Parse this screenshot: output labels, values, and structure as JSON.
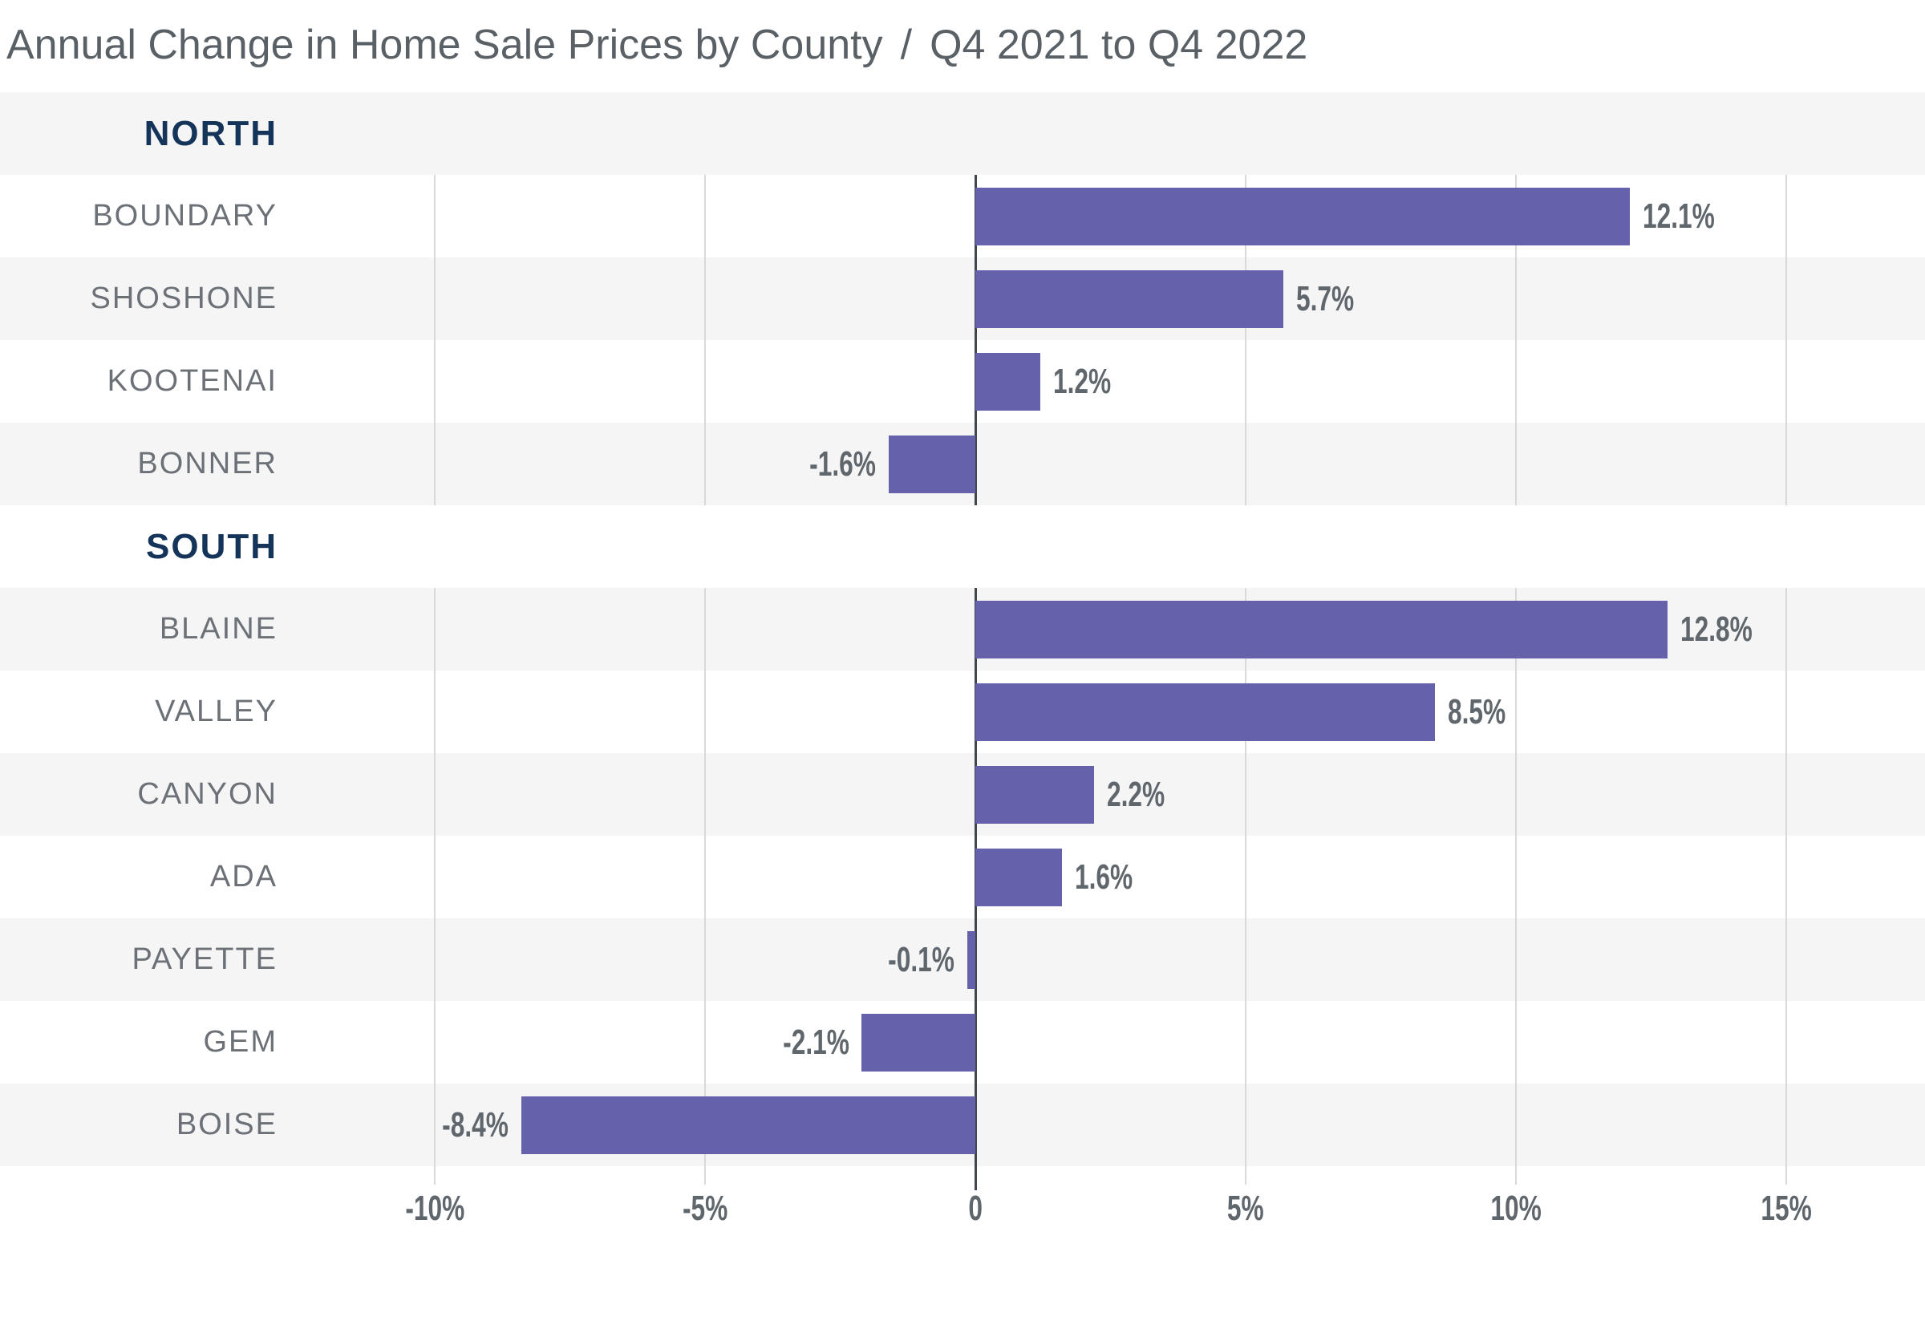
{
  "title": {
    "main": "Annual Change in Home Sale Prices by County",
    "separator": "/",
    "range": "Q4 2021 to Q4 2022"
  },
  "chart_data": {
    "type": "bar",
    "orientation": "horizontal",
    "value_unit": "percent",
    "title": "Annual Change in Home Sale Prices by County / Q4 2021 to Q4 2022",
    "x_axis": {
      "min": -13,
      "max": 17.5,
      "gridlines": true,
      "ticks": [
        {
          "value": -10,
          "label": "-10%"
        },
        {
          "value": -5,
          "label": "-5%"
        },
        {
          "value": 0,
          "label": "0"
        },
        {
          "value": 5,
          "label": "5%"
        },
        {
          "value": 10,
          "label": "10%"
        },
        {
          "value": 15,
          "label": "15%"
        }
      ]
    },
    "groups": [
      {
        "section": "NORTH",
        "rows": [
          {
            "county": "BOUNDARY",
            "value": 12.1,
            "label": "12.1%"
          },
          {
            "county": "SHOSHONE",
            "value": 5.7,
            "label": "5.7%"
          },
          {
            "county": "KOOTENAI",
            "value": 1.2,
            "label": "1.2%"
          },
          {
            "county": "BONNER",
            "value": -1.6,
            "label": "-1.6%"
          }
        ]
      },
      {
        "section": "SOUTH",
        "rows": [
          {
            "county": "BLAINE",
            "value": 12.8,
            "label": "12.8%"
          },
          {
            "county": "VALLEY",
            "value": 8.5,
            "label": "8.5%"
          },
          {
            "county": "CANYON",
            "value": 2.2,
            "label": "2.2%"
          },
          {
            "county": "ADA",
            "value": 1.6,
            "label": "1.6%"
          },
          {
            "county": "PAYETTE",
            "value": -0.1,
            "label": "-0.1%"
          },
          {
            "county": "GEM",
            "value": -2.1,
            "label": "-2.1%"
          },
          {
            "county": "BOISE",
            "value": -8.4,
            "label": "-8.4%"
          }
        ]
      }
    ],
    "colors": {
      "bar": "#6661ab",
      "zero_line": "#3f464d",
      "gridline": "#d9d9db",
      "row_band": "#f5f5f6",
      "section_label": "#143459",
      "county_label": "#6b7177",
      "value_label": "#5f666c",
      "tick_label": "#5f666c",
      "title": "#596066"
    }
  }
}
